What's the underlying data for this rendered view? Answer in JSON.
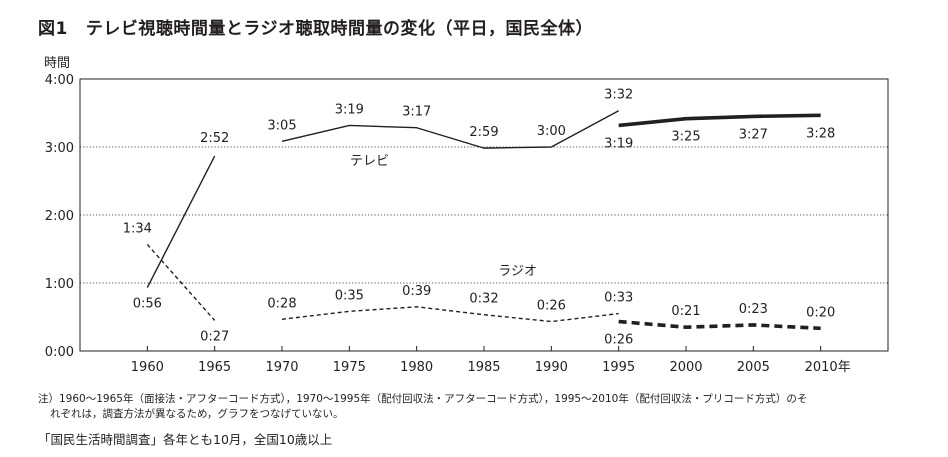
{
  "figure": {
    "number": "図1",
    "title": "テレビ視聴時間量とラジオ聴取時間量の変化（平日，国民全体）"
  },
  "chart_data": {
    "type": "line",
    "ylabel": "時間",
    "xlabel": "",
    "ylim": [
      0,
      240
    ],
    "yticks": [
      {
        "value": 0,
        "label": "0:00"
      },
      {
        "value": 60,
        "label": "1:00"
      },
      {
        "value": 120,
        "label": "2:00"
      },
      {
        "value": 180,
        "label": "3:00"
      },
      {
        "value": 240,
        "label": "4:00"
      }
    ],
    "xticks": [
      {
        "value": 1960,
        "label": "1960"
      },
      {
        "value": 1965,
        "label": "1965"
      },
      {
        "value": 1970,
        "label": "1970"
      },
      {
        "value": 1975,
        "label": "1975"
      },
      {
        "value": 1980,
        "label": "1980"
      },
      {
        "value": 1985,
        "label": "1985"
      },
      {
        "value": 1990,
        "label": "1990"
      },
      {
        "value": 1995,
        "label": "1995"
      },
      {
        "value": 2000,
        "label": "2000"
      },
      {
        "value": 2005,
        "label": "2005"
      },
      {
        "value": 2010,
        "label": "2010年"
      }
    ],
    "gridlines": "horizontal-dotted",
    "series": [
      {
        "name": "テレビ",
        "segments": [
          {
            "style": "solid-thin",
            "points": [
              {
                "x": 1960,
                "y": 56,
                "label": "0:56"
              },
              {
                "x": 1965,
                "y": 172,
                "label": "2:52"
              }
            ]
          },
          {
            "style": "solid-thin",
            "points": [
              {
                "x": 1970,
                "y": 185,
                "label": "3:05"
              },
              {
                "x": 1975,
                "y": 199,
                "label": "3:19"
              },
              {
                "x": 1980,
                "y": 197,
                "label": "3:17"
              },
              {
                "x": 1985,
                "y": 179,
                "label": "2:59"
              },
              {
                "x": 1990,
                "y": 180,
                "label": "3:00"
              },
              {
                "x": 1995,
                "y": 212,
                "label": "3:32"
              }
            ]
          },
          {
            "style": "solid-thick",
            "points": [
              {
                "x": 1995,
                "y": 199,
                "label": "3:19"
              },
              {
                "x": 2000,
                "y": 205,
                "label": "3:25"
              },
              {
                "x": 2005,
                "y": 207,
                "label": "3:27"
              },
              {
                "x": 2010,
                "y": 208,
                "label": "3:28"
              }
            ]
          }
        ]
      },
      {
        "name": "ラジオ",
        "segments": [
          {
            "style": "dashed-thin",
            "points": [
              {
                "x": 1960,
                "y": 94,
                "label": "1:34"
              },
              {
                "x": 1965,
                "y": 27,
                "label": "0:27"
              }
            ]
          },
          {
            "style": "dashed-thin",
            "points": [
              {
                "x": 1970,
                "y": 28,
                "label": "0:28"
              },
              {
                "x": 1975,
                "y": 35,
                "label": "0:35"
              },
              {
                "x": 1980,
                "y": 39,
                "label": "0:39"
              },
              {
                "x": 1985,
                "y": 32,
                "label": "0:32"
              },
              {
                "x": 1990,
                "y": 26,
                "label": "0:26"
              },
              {
                "x": 1995,
                "y": 33,
                "label": "0:33"
              }
            ]
          },
          {
            "style": "dashed-thick",
            "points": [
              {
                "x": 1995,
                "y": 26,
                "label": "0:26"
              },
              {
                "x": 2000,
                "y": 21,
                "label": "0:21"
              },
              {
                "x": 2005,
                "y": 23,
                "label": "0:23"
              },
              {
                "x": 2010,
                "y": 20,
                "label": "0:20"
              }
            ]
          }
        ]
      }
    ]
  },
  "notes": {
    "line1": "注）1960〜1965年（面接法・アフターコード方式），1970〜1995年（配付回収法・アフターコード方式），1995〜2010年（配付回収法・プリコード方式）のそ",
    "line2": "れぞれは，調査方法が異なるため，グラフをつなげていない。"
  },
  "source": "「国民生活時間調査」各年とも10月，全国10歳以上"
}
